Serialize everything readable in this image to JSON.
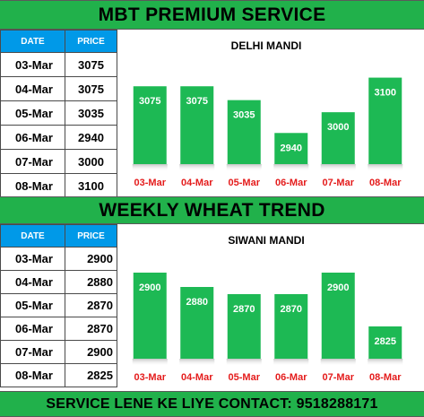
{
  "banners": {
    "top": "MBT PREMIUM SERVICE",
    "middle": "WEEKLY WHEAT TREND",
    "bottom": "SERVICE LENE KE LIYE CONTACT: 9518288171"
  },
  "table_headers": {
    "date": "DATE",
    "price": "PRICE"
  },
  "colors": {
    "banner_green": "#21b14b",
    "bar_green": "#1db954",
    "header_blue": "#0099e8",
    "category_red": "#e41c1c"
  },
  "chart_data": [
    {
      "type": "bar",
      "title": "DELHI MANDI",
      "categories": [
        "03-Mar",
        "04-Mar",
        "05-Mar",
        "06-Mar",
        "07-Mar",
        "08-Mar"
      ],
      "values": [
        3075,
        3075,
        3035,
        2940,
        3000,
        3100
      ],
      "ylim": [
        2850,
        3130
      ],
      "grid": false,
      "xlabel": "",
      "ylabel": ""
    },
    {
      "type": "bar",
      "title": "SIWANI MANDI",
      "categories": [
        "03-Mar",
        "04-Mar",
        "05-Mar",
        "06-Mar",
        "07-Mar",
        "08-Mar"
      ],
      "values": [
        2900,
        2880,
        2870,
        2870,
        2900,
        2825
      ],
      "ylim": [
        2780,
        2915
      ],
      "grid": false,
      "xlabel": "",
      "ylabel": ""
    }
  ]
}
